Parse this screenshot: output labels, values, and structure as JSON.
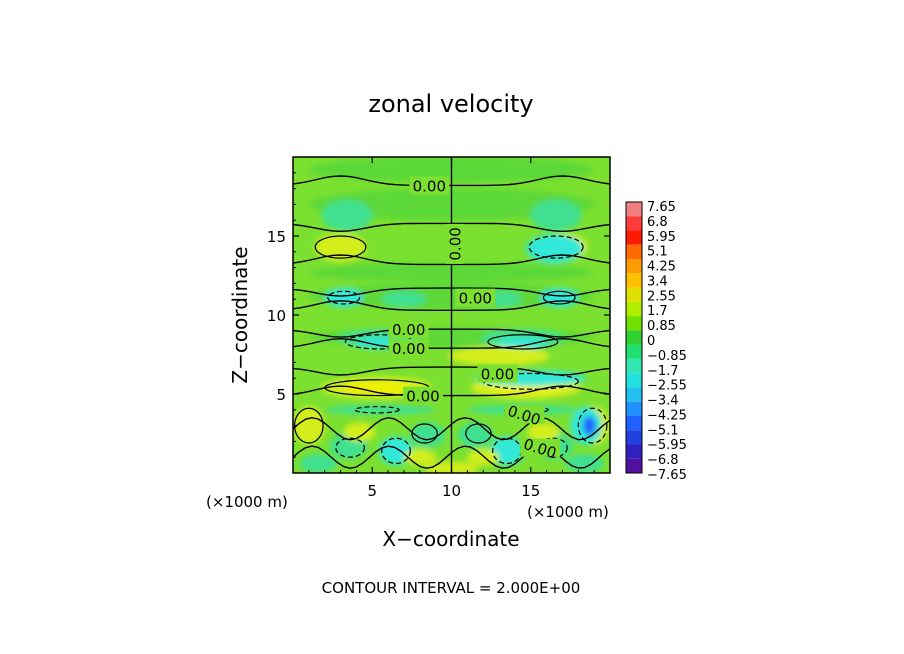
{
  "chart_data": {
    "type": "heatmap",
    "title": "zonal velocity",
    "xlabel": "X−coordinate",
    "ylabel": "Z−coordinate",
    "x_unit_label": "(×1000 m)",
    "x_unit_label_right": "(×1000 m)",
    "footer": "CONTOUR INTERVAL = 2.000E+00",
    "xlim": [
      0,
      20
    ],
    "ylim": [
      0,
      20
    ],
    "x_ticks": [
      5,
      10,
      15
    ],
    "x_tick_labels": [
      "5",
      "10",
      "15"
    ],
    "y_ticks": [
      5,
      10,
      15
    ],
    "y_tick_labels": [
      "5",
      "10",
      "15"
    ],
    "contour_label": "0.00",
    "contour_label_positions": [
      {
        "x": 8.6,
        "z": 18.2
      },
      {
        "x": 10.2,
        "z": 14.5
      },
      {
        "x": 11.5,
        "z": 11.1
      },
      {
        "x": 7.3,
        "z": 9.1
      },
      {
        "x": 7.3,
        "z": 7.9
      },
      {
        "x": 12.9,
        "z": 6.3
      },
      {
        "x": 8.2,
        "z": 4.9
      },
      {
        "x": 14.6,
        "z": 3.7
      },
      {
        "x": 15.6,
        "z": 1.6
      }
    ],
    "colorbar": {
      "labels": [
        "7.65",
        "6.8",
        "5.95",
        "5.1",
        "4.25",
        "3.4",
        "2.55",
        "1.7",
        "0.85",
        "0",
        "−0.85",
        "−1.7",
        "−2.55",
        "−3.4",
        "−4.25",
        "−5.1",
        "−5.95",
        "−6.8",
        "−7.65"
      ],
      "colors": [
        "#f08080",
        "#ff3a3a",
        "#ff1a00",
        "#ff6a00",
        "#ff9a00",
        "#ffc000",
        "#e0e000",
        "#b0ee00",
        "#70e000",
        "#30d030",
        "#20e070",
        "#30e8b0",
        "#20e0e0",
        "#20c0f0",
        "#2090ff",
        "#2060ff",
        "#2040e0",
        "#3020c0",
        "#5010a0"
      ]
    },
    "field_description_colors": {
      "background_positive": "#7be030",
      "background_zero": "#5cd838",
      "weak_negative": "#40e090",
      "negative": "#30e8d8",
      "positive": "#d4ee1a",
      "strong_positive": "#f0f000",
      "strong_negative": "#2060ff"
    }
  }
}
